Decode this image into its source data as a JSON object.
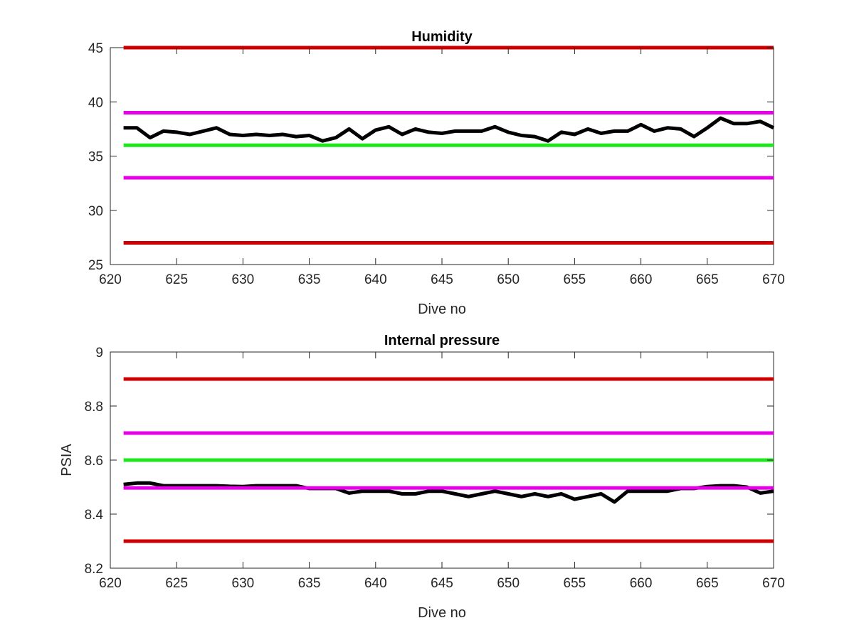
{
  "chart_data": [
    {
      "type": "line",
      "title": "Humidity",
      "xlabel": "Dive no",
      "ylabel": "",
      "xlim": [
        620,
        670
      ],
      "ylim": [
        25,
        45
      ],
      "xticks": [
        "620",
        "625",
        "630",
        "635",
        "640",
        "645",
        "650",
        "655",
        "660",
        "665",
        "670"
      ],
      "yticks": [
        "25",
        "30",
        "35",
        "40",
        "45"
      ],
      "grid": false,
      "threshold_lines": [
        {
          "y": 45,
          "color": "#cc0000"
        },
        {
          "y": 39,
          "color": "#e600e6"
        },
        {
          "y": 36,
          "color": "#1ee61e"
        },
        {
          "y": 33,
          "color": "#e600e6"
        },
        {
          "y": 27,
          "color": "#cc0000"
        }
      ],
      "series": [
        {
          "color": "#000000",
          "x": [
            621,
            622,
            623,
            624,
            625,
            626,
            627,
            628,
            629,
            630,
            631,
            632,
            633,
            634,
            635,
            636,
            637,
            638,
            639,
            640,
            641,
            642,
            643,
            644,
            645,
            646,
            647,
            648,
            649,
            650,
            651,
            652,
            653,
            654,
            655,
            656,
            657,
            658,
            659,
            660,
            661,
            662,
            663,
            664,
            665,
            666,
            667,
            668,
            669,
            670
          ],
          "y": [
            37.6,
            37.6,
            36.7,
            37.3,
            37.2,
            37.0,
            37.3,
            37.6,
            37.0,
            36.9,
            37.0,
            36.9,
            37.0,
            36.8,
            36.9,
            36.4,
            36.7,
            37.5,
            36.6,
            37.4,
            37.7,
            37.0,
            37.5,
            37.2,
            37.1,
            37.3,
            37.3,
            37.3,
            37.7,
            37.2,
            36.9,
            36.8,
            36.4,
            37.2,
            37.0,
            37.5,
            37.1,
            37.3,
            37.3,
            37.9,
            37.3,
            37.6,
            37.5,
            36.8,
            37.6,
            38.5,
            38.0,
            38.0,
            38.2,
            37.6
          ]
        }
      ]
    },
    {
      "type": "line",
      "title": "Internal pressure",
      "xlabel": "Dive no",
      "ylabel": "PSIA",
      "xlim": [
        620,
        670
      ],
      "ylim": [
        8.2,
        9.0
      ],
      "xticks": [
        "620",
        "625",
        "630",
        "635",
        "640",
        "645",
        "650",
        "655",
        "660",
        "665",
        "670"
      ],
      "yticks": [
        "8.2",
        "8.4",
        "8.6",
        "8.8",
        "9"
      ],
      "grid": false,
      "threshold_lines": [
        {
          "y": 8.9,
          "color": "#cc0000"
        },
        {
          "y": 8.7,
          "color": "#e600e6"
        },
        {
          "y": 8.6,
          "color": "#1ee61e"
        },
        {
          "y": 8.3,
          "color": "#cc0000"
        }
      ],
      "series": [
        {
          "color": "#000000",
          "x": [
            621,
            622,
            623,
            624,
            625,
            626,
            627,
            628,
            629,
            630,
            631,
            632,
            633,
            634,
            635,
            636,
            637,
            638,
            639,
            640,
            641,
            642,
            643,
            644,
            645,
            646,
            647,
            648,
            649,
            650,
            651,
            652,
            653,
            654,
            655,
            656,
            657,
            658,
            659,
            660,
            661,
            662,
            663,
            664,
            665,
            666,
            667,
            668,
            669,
            670
          ],
          "y": [
            8.51,
            8.515,
            8.515,
            8.505,
            8.505,
            8.505,
            8.505,
            8.505,
            8.503,
            8.502,
            8.505,
            8.505,
            8.505,
            8.505,
            8.495,
            8.495,
            8.495,
            8.478,
            8.485,
            8.485,
            8.485,
            8.475,
            8.475,
            8.485,
            8.485,
            8.475,
            8.465,
            8.475,
            8.485,
            8.475,
            8.465,
            8.475,
            8.465,
            8.475,
            8.455,
            8.465,
            8.475,
            8.445,
            8.485,
            8.485,
            8.485,
            8.485,
            8.495,
            8.495,
            8.502,
            8.505,
            8.505,
            8.5,
            8.478,
            8.485
          ]
        },
        {
          "color": "#e600e6",
          "x": [
            621,
            670
          ],
          "y": [
            8.497,
            8.497
          ]
        }
      ]
    }
  ]
}
